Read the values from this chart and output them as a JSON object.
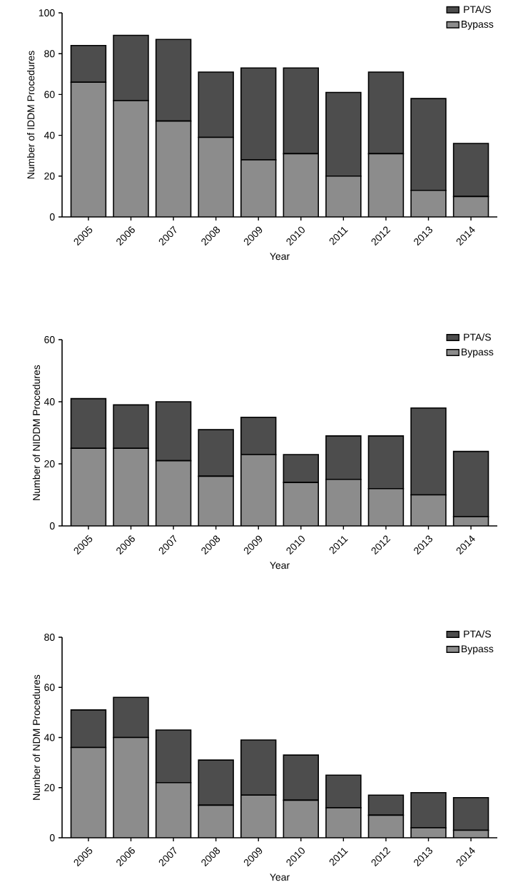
{
  "chart_data": [
    {
      "type": "bar",
      "stacked": true,
      "categories": [
        "2005",
        "2006",
        "2007",
        "2008",
        "2009",
        "2010",
        "2011",
        "2012",
        "2013",
        "2014"
      ],
      "xlabel": "Year",
      "ylabel": "Number of IDDM Procedures",
      "ylim": [
        0,
        100
      ],
      "yticks": [
        0,
        20,
        40,
        60,
        80,
        100
      ],
      "legend": "top right",
      "series": [
        {
          "name": "Bypass",
          "color": "#8c8c8c",
          "values": [
            66,
            57,
            47,
            39,
            28,
            31,
            20,
            31,
            13,
            10
          ]
        },
        {
          "name": "PTA/S",
          "color": "#4d4d4d",
          "values": [
            18,
            32,
            40,
            32,
            45,
            42,
            41,
            40,
            45,
            26
          ]
        }
      ]
    },
    {
      "type": "bar",
      "stacked": true,
      "categories": [
        "2005",
        "2006",
        "2007",
        "2008",
        "2009",
        "2010",
        "2011",
        "2012",
        "2013",
        "2014"
      ],
      "xlabel": "Year",
      "ylabel": "Number of NIDDM Procedures",
      "ylim": [
        0,
        60
      ],
      "yticks": [
        0,
        20,
        40,
        60
      ],
      "legend": "top right",
      "series": [
        {
          "name": "Bypass",
          "color": "#8c8c8c",
          "values": [
            25,
            25,
            21,
            16,
            23,
            14,
            15,
            12,
            10,
            3
          ]
        },
        {
          "name": "PTA/S",
          "color": "#4d4d4d",
          "values": [
            16,
            14,
            19,
            15,
            12,
            9,
            14,
            17,
            28,
            21
          ]
        }
      ]
    },
    {
      "type": "bar",
      "stacked": true,
      "categories": [
        "2005",
        "2006",
        "2007",
        "2008",
        "2009",
        "2010",
        "2011",
        "2012",
        "2013",
        "2014"
      ],
      "xlabel": "Year",
      "ylabel": "Number of NDM Procedures",
      "ylim": [
        0,
        80
      ],
      "yticks": [
        0,
        20,
        40,
        60,
        80
      ],
      "legend": "top right",
      "series": [
        {
          "name": "Bypass",
          "color": "#8c8c8c",
          "values": [
            36,
            40,
            22,
            13,
            17,
            15,
            12,
            9,
            4,
            3
          ]
        },
        {
          "name": "PTA/S",
          "color": "#4d4d4d",
          "values": [
            15,
            16,
            21,
            18,
            22,
            18,
            13,
            8,
            14,
            13
          ]
        }
      ]
    }
  ]
}
